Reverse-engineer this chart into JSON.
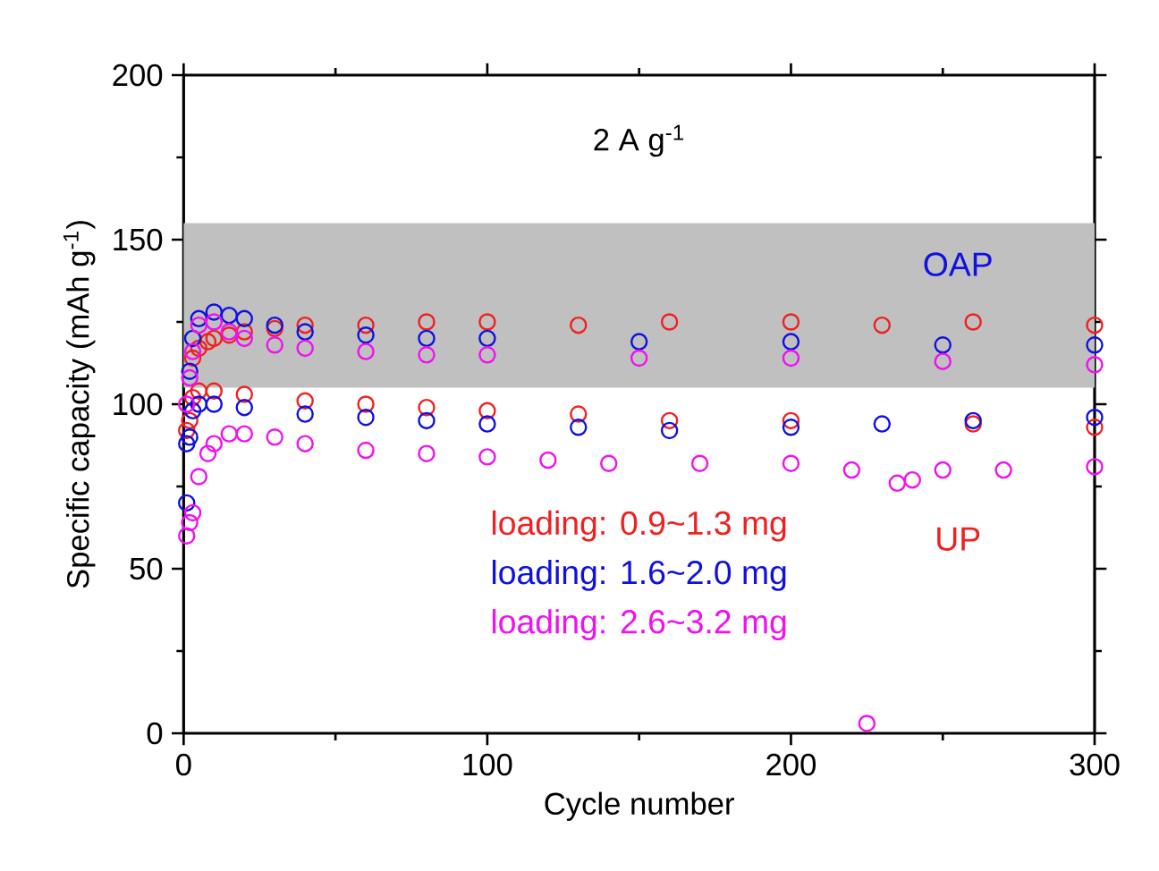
{
  "chart_data": {
    "type": "scatter",
    "title": "2 A g$^{-1}$",
    "xlabel": "Cycle number",
    "ylabel": "Specific capacity (mAh g$^{-1}$)",
    "xlim": [
      0,
      300
    ],
    "ylim": [
      0,
      200
    ],
    "xticks": [
      0,
      100,
      200,
      300
    ],
    "yticks": [
      0,
      50,
      100,
      150,
      200
    ],
    "marker": "circle",
    "legend": "bottom",
    "grid": false,
    "annotations": [
      "UP"
    ],
    "bands": [
      {
        "axis": "y",
        "from": 105,
        "to": 155,
        "label": "OAP",
        "color": "#c0c0c0"
      }
    ],
    "series": [
      {
        "name": "loading: 0.9~1.3 mg",
        "color": "#f02020",
        "x": [
          1,
          3,
          5,
          8,
          10,
          15,
          20,
          30,
          40,
          60,
          80,
          100,
          130,
          160,
          200,
          230,
          260,
          300
        ],
        "values": [
          92,
          114,
          117,
          119,
          120,
          121,
          122,
          123,
          124,
          124,
          125,
          125,
          124,
          125,
          125,
          124,
          125,
          124
        ]
      },
      {
        "color": "#f02020",
        "x": [
          2,
          3,
          5,
          10,
          20,
          40,
          60,
          80,
          100,
          130,
          160,
          200,
          260,
          300
        ],
        "values": [
          95,
          102,
          104,
          104,
          103,
          101,
          100,
          99,
          98,
          97,
          95,
          95,
          94,
          93
        ]
      },
      {
        "name": "loading: 1.6~2.0 mg",
        "color": "#1010e0",
        "x": [
          1,
          2,
          3,
          5,
          10,
          15,
          20,
          30,
          40,
          60,
          80,
          100,
          150,
          200,
          250,
          300
        ],
        "values": [
          88,
          110,
          120,
          126,
          128,
          127,
          126,
          124,
          122,
          121,
          120,
          120,
          119,
          119,
          118,
          118
        ]
      },
      {
        "color": "#1010e0",
        "x": [
          1,
          2,
          3,
          5,
          10,
          20,
          40,
          60,
          80,
          100,
          130,
          160,
          200,
          230,
          260,
          300
        ],
        "values": [
          70,
          90,
          98,
          100,
          100,
          99,
          97,
          96,
          95,
          94,
          93,
          92,
          93,
          94,
          95,
          96
        ]
      },
      {
        "name": "loading: 2.6~3.2 mg",
        "color": "#f010f0",
        "x": [
          1,
          2,
          3,
          5,
          10,
          15,
          20,
          30,
          40,
          60,
          80,
          100,
          150,
          200,
          250,
          300
        ],
        "values": [
          100,
          108,
          116,
          124,
          125,
          122,
          120,
          118,
          117,
          116,
          115,
          115,
          114,
          114,
          113,
          112
        ]
      },
      {
        "color": "#f010f0",
        "x": [
          1,
          2,
          3,
          5,
          8,
          10,
          15,
          20,
          30,
          40,
          60,
          80,
          100,
          120,
          140,
          170,
          200,
          220,
          225,
          235,
          240,
          250,
          270,
          300
        ],
        "values": [
          60,
          64,
          67,
          78,
          85,
          88,
          91,
          91,
          90,
          88,
          86,
          85,
          84,
          83,
          82,
          82,
          82,
          80,
          3,
          76,
          77,
          80,
          80,
          81
        ]
      }
    ]
  }
}
